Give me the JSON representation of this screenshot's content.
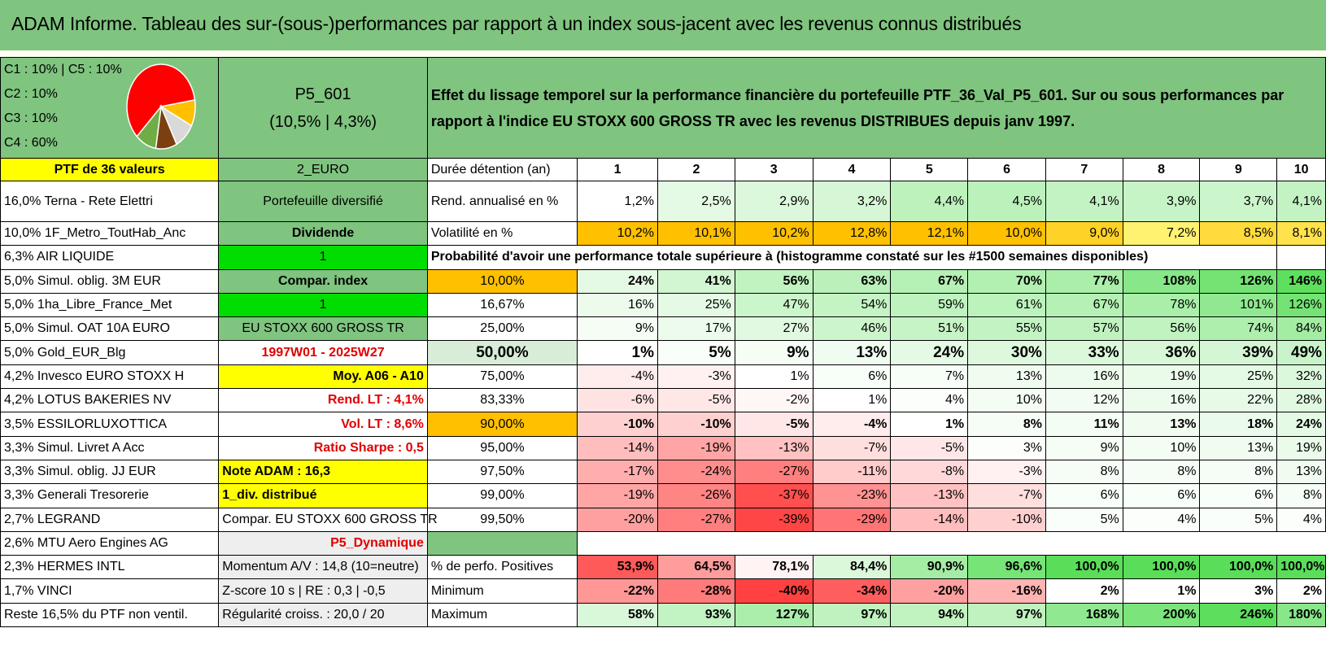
{
  "title": "ADAM Informe. Tableau des sur-(sous-)performances par rapport à un index sous-jacent avec les revenus connus distribués",
  "allocation": {
    "legend": [
      "C1 : 10% | C5 : 10%",
      "C2 : 10%",
      "C3 : 10%",
      "C4 : 60%"
    ],
    "pie": [
      {
        "name": "C4",
        "pct": 60,
        "color": "#ff0000"
      },
      {
        "name": "C1",
        "pct": 10,
        "color": "#ffc000"
      },
      {
        "name": "C5",
        "pct": 10,
        "color": "#d9d9d9"
      },
      {
        "name": "C2",
        "pct": 10,
        "color": "#7b3f10"
      },
      {
        "name": "C3",
        "pct": 10,
        "color": "#70ad47"
      }
    ]
  },
  "portfolio": {
    "code": "P5_601",
    "perf": "(10,5% | 4,3%)"
  },
  "description": "Effet du lissage temporel sur la performance financière du portefeuille PTF_36_Val_P5_601. Sur ou sous performances par rapport à l'indice EU STOXX 600 GROSS TR avec les revenus DISTRIBUES depuis janv 1997.",
  "ptf_label": "PTF de 36 valeurs",
  "currency": "2_EURO",
  "holding_label": "Durée détention (an)",
  "years": [
    "1",
    "2",
    "3",
    "4",
    "5",
    "6",
    "7",
    "8",
    "9",
    "10"
  ],
  "holdings": [
    "16,0% Terna - Rete Elettri",
    "10,0% 1F_Metro_ToutHab_Anc",
    "6,3% AIR LIQUIDE",
    "5,0% Simul. oblig. 3M EUR",
    "5,0% 1ha_Libre_France_Met",
    "5,0% Simul. OAT 10A EURO",
    "5,0% Gold_EUR_Blg",
    "4,2% Invesco EURO STOXX H",
    "4,2% LOTUS BAKERIES NV",
    "3,5% ESSILORLUXOTTICA",
    "3,3% Simul. Livret A Acc",
    "3,3% Simul. oblig. JJ EUR",
    "3,3% Generali Tresorerie",
    "2,7% LEGRAND",
    "2,6% MTU Aero Engines AG",
    "2,3% HERMES INTL",
    "1,7% VINCI",
    "Reste 16,5% du PTF non ventil."
  ],
  "info": [
    "Portefeuille diversifié",
    "Dividende",
    "1",
    "Compar. index",
    "1",
    "EU STOXX 600 GROSS TR",
    "1997W01 - 2025W27",
    "Moy. A06 - A10",
    "Rend. LT : 4,1%",
    "Vol. LT : 8,6%",
    "Ratio Sharpe : 0,5",
    "Note ADAM : 16,3",
    "1_div. distribué",
    "Compar. EU STOXX 600 GROSS TR",
    "P5_Dynamique",
    "Momentum A/V : 14,8 (10=neutre)",
    "Z-score 10 s | RE : 0,3 | -0,5",
    "Régularité croiss. : 20,0 / 20"
  ],
  "return_row": {
    "label": "Rend. annualisé en %",
    "values": [
      "1,2%",
      "2,5%",
      "2,9%",
      "3,2%",
      "4,4%",
      "4,5%",
      "4,1%",
      "3,9%",
      "3,7%",
      "4,1%"
    ]
  },
  "vol_row": {
    "label": "Volatilité en %",
    "values": [
      "10,2%",
      "10,1%",
      "10,2%",
      "12,8%",
      "12,1%",
      "10,0%",
      "9,0%",
      "7,2%",
      "8,5%",
      "8,1%"
    ]
  },
  "prob_title": "Probabilité d'avoir une performance totale supérieure à (histogramme constaté sur les #1500 semaines disponibles)",
  "prob_rows": [
    {
      "p": "10,00%",
      "values": [
        "24%",
        "41%",
        "56%",
        "63%",
        "67%",
        "70%",
        "77%",
        "108%",
        "126%",
        "146%"
      ]
    },
    {
      "p": "16,67%",
      "values": [
        "16%",
        "25%",
        "47%",
        "54%",
        "59%",
        "61%",
        "67%",
        "78%",
        "101%",
        "126%"
      ]
    },
    {
      "p": "25,00%",
      "values": [
        "9%",
        "17%",
        "27%",
        "46%",
        "51%",
        "55%",
        "57%",
        "56%",
        "74%",
        "84%"
      ]
    },
    {
      "p": "50,00%",
      "values": [
        "1%",
        "5%",
        "9%",
        "13%",
        "24%",
        "30%",
        "33%",
        "36%",
        "39%",
        "49%"
      ]
    },
    {
      "p": "75,00%",
      "values": [
        "-4%",
        "-3%",
        "1%",
        "6%",
        "7%",
        "13%",
        "16%",
        "19%",
        "25%",
        "32%"
      ]
    },
    {
      "p": "83,33%",
      "values": [
        "-6%",
        "-5%",
        "-2%",
        "1%",
        "4%",
        "10%",
        "12%",
        "16%",
        "22%",
        "28%"
      ]
    },
    {
      "p": "90,00%",
      "values": [
        "-10%",
        "-10%",
        "-5%",
        "-4%",
        "1%",
        "8%",
        "11%",
        "13%",
        "18%",
        "24%"
      ]
    },
    {
      "p": "95,00%",
      "values": [
        "-14%",
        "-19%",
        "-13%",
        "-7%",
        "-5%",
        "3%",
        "9%",
        "10%",
        "13%",
        "19%"
      ]
    },
    {
      "p": "97,50%",
      "values": [
        "-17%",
        "-24%",
        "-27%",
        "-11%",
        "-8%",
        "-3%",
        "8%",
        "8%",
        "8%",
        "13%"
      ]
    },
    {
      "p": "99,00%",
      "values": [
        "-19%",
        "-26%",
        "-37%",
        "-23%",
        "-13%",
        "-7%",
        "6%",
        "6%",
        "6%",
        "8%"
      ]
    },
    {
      "p": "99,50%",
      "values": [
        "-20%",
        "-27%",
        "-39%",
        "-29%",
        "-14%",
        "-10%",
        "5%",
        "4%",
        "5%",
        "4%"
      ]
    }
  ],
  "pos_row": {
    "label": "% de perfo. Positives",
    "values": [
      "53,9%",
      "64,5%",
      "78,1%",
      "84,4%",
      "90,9%",
      "96,6%",
      "100,0%",
      "100,0%",
      "100,0%",
      "100,0%"
    ]
  },
  "min_row": {
    "label": "Minimum",
    "values": [
      "-22%",
      "-28%",
      "-40%",
      "-34%",
      "-20%",
      "-16%",
      "2%",
      "1%",
      "3%",
      "2%"
    ]
  },
  "max_row": {
    "label": "Maximum",
    "values": [
      "58%",
      "93%",
      "127%",
      "97%",
      "94%",
      "97%",
      "168%",
      "200%",
      "246%",
      "180%"
    ]
  }
}
